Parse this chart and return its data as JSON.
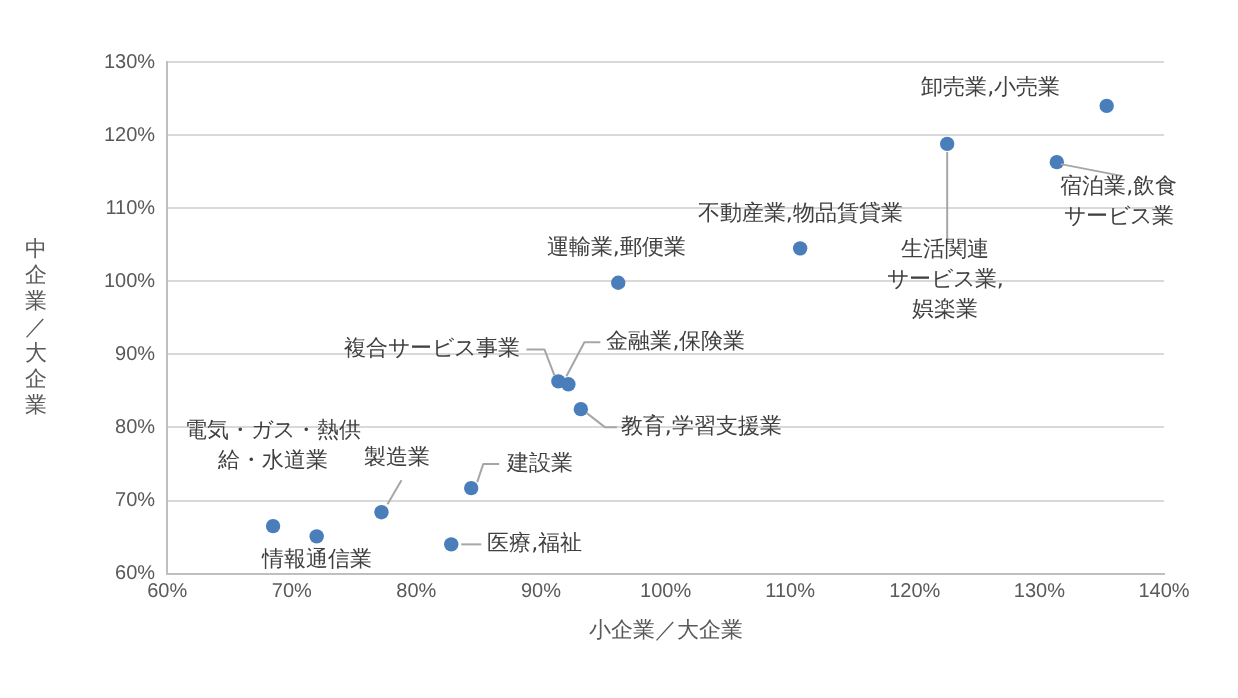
{
  "chart_data": {
    "type": "scatter",
    "xlabel": "小企業／大企業",
    "ylabel": "中企業／大企業",
    "x": [
      68.5,
      72.0,
      77.2,
      82.8,
      84.4,
      91.4,
      92.2,
      93.2,
      96.2,
      110.8,
      122.6,
      131.4,
      135.4
    ],
    "values": [
      66.5,
      65.1,
      68.4,
      64.0,
      71.7,
      86.3,
      85.9,
      82.5,
      99.8,
      104.5,
      118.8,
      116.3,
      124.0
    ],
    "color": "#4a7ebb",
    "marker": "circle",
    "grid": "y",
    "legend": false,
    "xlim": [
      60,
      140
    ],
    "xticks": [
      {
        "value": 60,
        "label": "60%"
      },
      {
        "value": 70,
        "label": "70%"
      },
      {
        "value": 80,
        "label": "80%"
      },
      {
        "value": 90,
        "label": "90%"
      },
      {
        "value": 100,
        "label": "100%"
      },
      {
        "value": 110,
        "label": "110%"
      },
      {
        "value": 120,
        "label": "120%"
      },
      {
        "value": 130,
        "label": "130%"
      },
      {
        "value": 140,
        "label": "140%"
      }
    ],
    "ylim": [
      60,
      130
    ],
    "yticks": [
      {
        "value": 60,
        "label": "60%"
      },
      {
        "value": 70,
        "label": "70%"
      },
      {
        "value": 80,
        "label": "80%"
      },
      {
        "value": 90,
        "label": "90%"
      },
      {
        "value": 100,
        "label": "100%"
      },
      {
        "value": 110,
        "label": "110%"
      },
      {
        "value": 120,
        "label": "120%"
      },
      {
        "value": 130,
        "label": "130%"
      }
    ],
    "annotations": [
      {
        "text": "電気・ガス・熱供給・水道業",
        "x": 68.5,
        "y": 66.5
      },
      {
        "text": "情報通信業",
        "x": 72.0,
        "y": 65.1
      },
      {
        "text": "製造業",
        "x": 77.2,
        "y": 68.4
      },
      {
        "text": "医療,福祉",
        "x": 82.8,
        "y": 64.0
      },
      {
        "text": "建設業",
        "x": 84.4,
        "y": 71.7
      },
      {
        "text": "複合サービス事業",
        "x": 91.4,
        "y": 86.3
      },
      {
        "text": "金融業,保険業",
        "x": 92.2,
        "y": 85.9
      },
      {
        "text": "教育,学習支援業",
        "x": 93.2,
        "y": 82.5
      },
      {
        "text": "運輸業,郵便業",
        "x": 96.2,
        "y": 99.8
      },
      {
        "text": "不動産業,物品賃貸業",
        "x": 110.8,
        "y": 104.5
      },
      {
        "text": "生活関連サービス業,娯楽業",
        "x": 122.6,
        "y": 118.8
      },
      {
        "text": "宿泊業,飲食サービス業",
        "x": 131.4,
        "y": 116.3
      },
      {
        "text": "卸売業,小売業",
        "x": 135.4,
        "y": 124.0
      }
    ]
  }
}
